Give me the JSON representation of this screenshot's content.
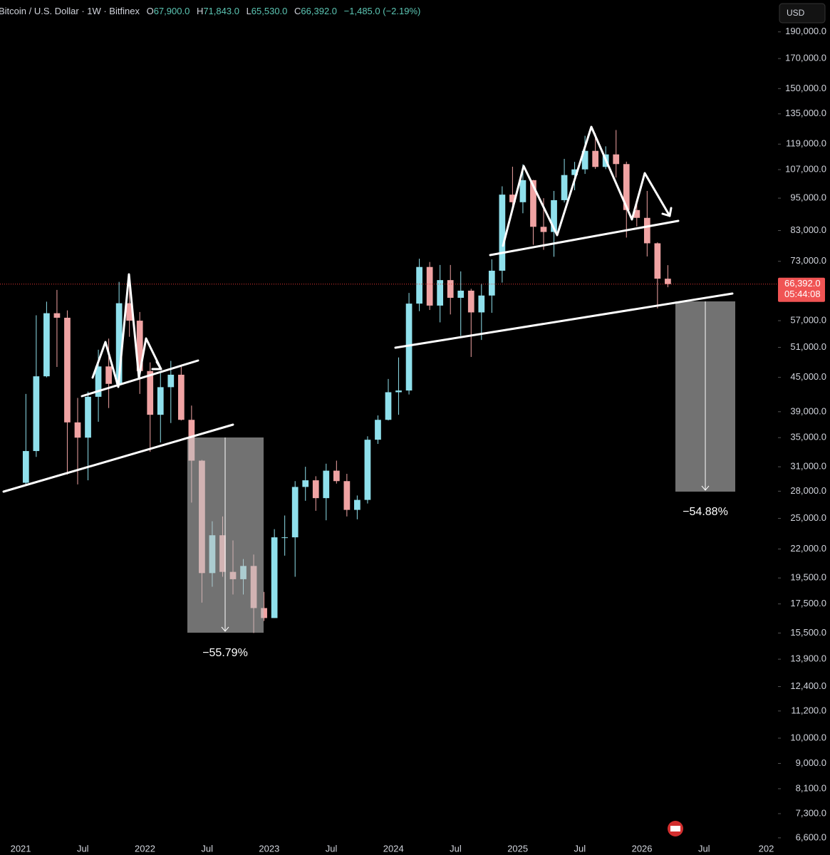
{
  "chart_data": {
    "type": "candlestick",
    "title": "Bitcoin / U.S. Dollar · 1W · Bitfinex",
    "ohlc_header": [
      {
        "label": "O",
        "value": "67,900.0"
      },
      {
        "label": "H",
        "value": "71,843.0"
      },
      {
        "label": "L",
        "value": "65,530.0"
      },
      {
        "label": "C",
        "value": "66,392.0"
      }
    ],
    "change": "−1,485.0 (−2.19%)",
    "currency": "USD",
    "last_price": {
      "value": 66392,
      "label": "66,392.0"
    },
    "countdown": "05:44:08",
    "annotations": [
      "−55.79%",
      "−54.88%"
    ],
    "log_scale": true,
    "grid": false,
    "up_color": "#8fe0ec",
    "down_color": "#f0a3a3",
    "x": [
      "2021-01",
      "2021-02",
      "2021-03",
      "2021-04",
      "2021-05",
      "2021-06",
      "2021-07",
      "2021-08",
      "2021-09",
      "2021-10",
      "2021-11",
      "2021-12",
      "2022-01",
      "2022-02",
      "2022-03",
      "2022-04",
      "2022-05",
      "2022-06",
      "2022-07",
      "2022-08",
      "2022-09",
      "2022-10",
      "2022-11",
      "2022-12",
      "2023-01",
      "2023-02",
      "2023-03",
      "2023-04",
      "2023-05",
      "2023-06",
      "2023-07",
      "2023-08",
      "2023-09",
      "2023-10",
      "2023-11",
      "2023-12",
      "2024-01",
      "2024-02",
      "2024-03",
      "2024-04",
      "2024-05",
      "2024-06",
      "2024-07",
      "2024-08",
      "2024-09",
      "2024-10",
      "2024-11",
      "2024-12",
      "2025-01",
      "2025-02",
      "2025-03",
      "2025-04",
      "2025-05",
      "2025-06",
      "2025-07",
      "2025-08",
      "2025-09",
      "2025-10",
      "2025-11",
      "2025-12",
      "2026-01",
      "2026-02",
      "2026-03"
    ],
    "open": [
      29000,
      33100,
      45200,
      58800,
      57700,
      37300,
      35000,
      41500,
      47100,
      43800,
      61300,
      57000,
      46200,
      38500,
      43200,
      45500,
      37700,
      31800,
      19900,
      23300,
      20000,
      19400,
      20500,
      17200,
      16500,
      23100,
      23100,
      28500,
      29300,
      27200,
      30500,
      29200,
      25900,
      27000,
      34700,
      37700,
      42300,
      42600,
      61200,
      71300,
      60700,
      67500,
      62700,
      64600,
      59000,
      63300,
      70200,
      96400,
      93400,
      102400,
      84300,
      82500,
      94200,
      104600,
      107100,
      115700,
      108200,
      114000,
      109500,
      90400,
      87500,
      78700,
      67900
    ],
    "high": [
      42000,
      58300,
      61700,
      64800,
      59500,
      41300,
      42400,
      50500,
      52900,
      67000,
      69000,
      59100,
      47900,
      45800,
      48200,
      47400,
      40000,
      31900,
      24700,
      25200,
      22800,
      21100,
      21500,
      18400,
      23900,
      25300,
      29200,
      31000,
      29800,
      31400,
      31800,
      30100,
      27500,
      35200,
      38400,
      44700,
      48900,
      64000,
      73800,
      72800,
      71900,
      71900,
      70000,
      65100,
      66500,
      73600,
      99800,
      108300,
      109400,
      102500,
      95000,
      97900,
      111900,
      110500,
      123200,
      124500,
      117900,
      126200,
      110600,
      94600,
      97900,
      79000,
      71843
    ],
    "low": [
      28800,
      32300,
      45000,
      47000,
      30000,
      28800,
      29300,
      37400,
      39600,
      43300,
      53300,
      42000,
      33000,
      34300,
      37200,
      37600,
      26700,
      17600,
      18800,
      19600,
      18200,
      18200,
      15500,
      16300,
      16500,
      21400,
      19600,
      26900,
      25800,
      24800,
      28900,
      25200,
      24900,
      26600,
      34100,
      37600,
      38500,
      41900,
      59300,
      59600,
      56600,
      58500,
      53500,
      49000,
      52600,
      58900,
      66800,
      90500,
      89200,
      78200,
      76600,
      74400,
      93300,
      98200,
      105100,
      107300,
      107200,
      103500,
      80600,
      84400,
      74500,
      60000,
      65530
    ],
    "close": [
      33100,
      45200,
      58800,
      57700,
      37300,
      35000,
      41500,
      47100,
      43800,
      61300,
      57000,
      46200,
      38500,
      43200,
      45500,
      37700,
      31800,
      19900,
      23300,
      20000,
      19400,
      20500,
      17200,
      16500,
      23100,
      23100,
      28500,
      29300,
      27200,
      30500,
      29200,
      25900,
      27000,
      34700,
      37700,
      42300,
      42600,
      61200,
      71300,
      60700,
      67500,
      62700,
      64600,
      59000,
      63300,
      70200,
      96400,
      93400,
      102400,
      84300,
      82500,
      94200,
      104600,
      107100,
      115700,
      108200,
      114000,
      109500,
      90400,
      87500,
      78700,
      67900,
      66392
    ],
    "xlim": [
      "2020-11",
      "2027-02"
    ],
    "xticks": [
      {
        "value": "2021-01",
        "label": "2021"
      },
      {
        "value": "2021-07",
        "label": "Jul"
      },
      {
        "value": "2022-01",
        "label": "2022"
      },
      {
        "value": "2022-07",
        "label": "Jul"
      },
      {
        "value": "2023-01",
        "label": "2023"
      },
      {
        "value": "2023-07",
        "label": "Jul"
      },
      {
        "value": "2024-01",
        "label": "2024"
      },
      {
        "value": "2024-07",
        "label": "Jul"
      },
      {
        "value": "2025-01",
        "label": "2025"
      },
      {
        "value": "2025-07",
        "label": "Jul"
      },
      {
        "value": "2026-01",
        "label": "2026"
      },
      {
        "value": "2026-07",
        "label": "Jul"
      },
      {
        "value": "2027-01",
        "label": "202"
      }
    ],
    "ylim": [
      6520,
      217000
    ],
    "yticks": [
      {
        "value": 190000,
        "label": "190,000.0"
      },
      {
        "value": 170000,
        "label": "170,000.0"
      },
      {
        "value": 150000,
        "label": "150,000.0"
      },
      {
        "value": 135000,
        "label": "135,000.0"
      },
      {
        "value": 119000,
        "label": "119,000.0"
      },
      {
        "value": 107000,
        "label": "107,000.0"
      },
      {
        "value": 95000,
        "label": "95,000.0"
      },
      {
        "value": 83000,
        "label": "83,000.0"
      },
      {
        "value": 73000,
        "label": "73,000.0"
      },
      {
        "value": 57000,
        "label": "57,000.0"
      },
      {
        "value": 51000,
        "label": "51,000.0"
      },
      {
        "value": 45000,
        "label": "45,000.0"
      },
      {
        "value": 39000,
        "label": "39,000.0"
      },
      {
        "value": 35000,
        "label": "35,000.0"
      },
      {
        "value": 31000,
        "label": "31,000.0"
      },
      {
        "value": 28000,
        "label": "28,000.0"
      },
      {
        "value": 25000,
        "label": "25,000.0"
      },
      {
        "value": 22000,
        "label": "22,000.0"
      },
      {
        "value": 19500,
        "label": "19,500.0"
      },
      {
        "value": 17500,
        "label": "17,500.0"
      },
      {
        "value": 15500,
        "label": "15,500.0"
      },
      {
        "value": 13900,
        "label": "13,900.0"
      },
      {
        "value": 12400,
        "label": "12,400.0"
      },
      {
        "value": 11200,
        "label": "11,200.0"
      },
      {
        "value": 10000,
        "label": "10,000.0"
      },
      {
        "value": 9000,
        "label": "9,000.0"
      },
      {
        "value": 8100,
        "label": "8,100.0"
      },
      {
        "value": 7300,
        "label": "7,300.0"
      },
      {
        "value": 6600,
        "label": "6,600.0"
      }
    ]
  }
}
